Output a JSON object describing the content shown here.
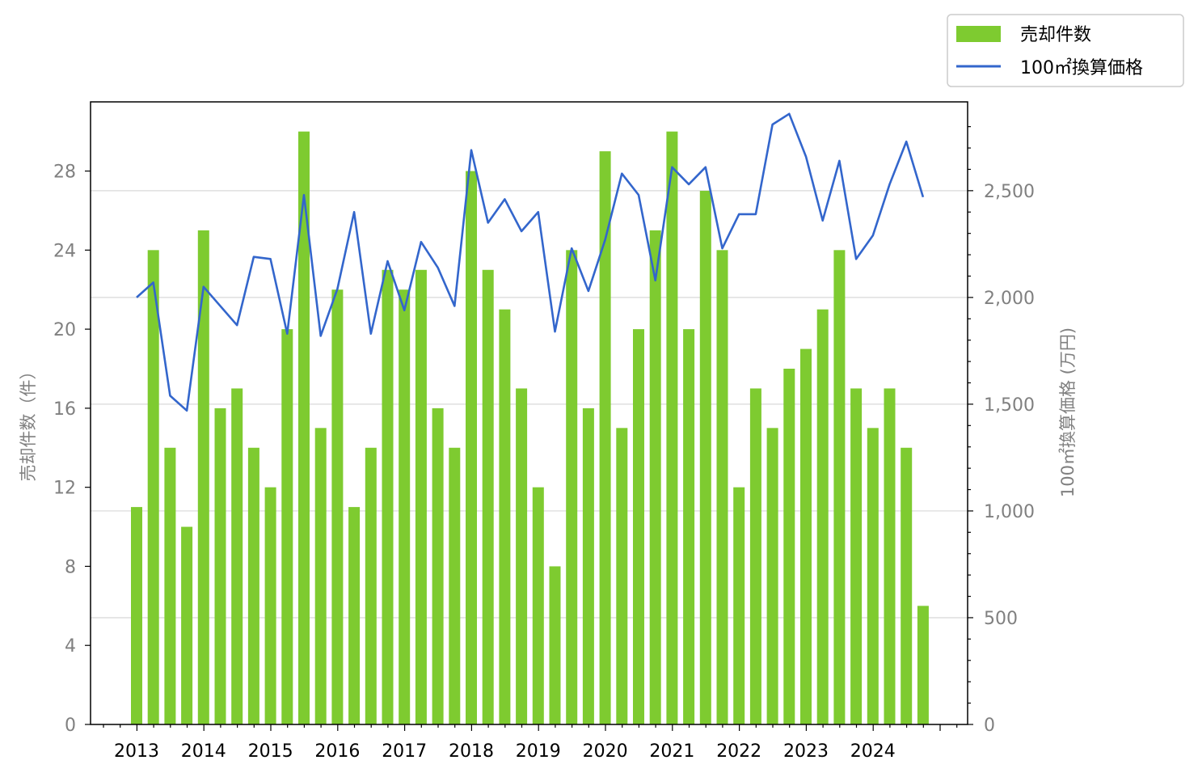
{
  "chart_data": {
    "type": "bar+line",
    "x_ticks": [
      "2013",
      "2014",
      "2015",
      "2016",
      "2017",
      "2018",
      "2019",
      "2020",
      "2021",
      "2022",
      "2023",
      "2024"
    ],
    "left_axis": {
      "label": "売却件数（件）",
      "ticks": [
        0,
        4,
        8,
        12,
        16,
        20,
        24,
        28
      ],
      "ylim": [
        0,
        31.5
      ]
    },
    "right_axis": {
      "label": "100㎡換算価格 (万円)",
      "ticks": [
        "0",
        "500",
        "1,000",
        "1,500",
        "2,000",
        "2,500"
      ],
      "tick_values": [
        0,
        500,
        1000,
        1500,
        2000,
        2500
      ],
      "ylim": [
        0,
        2916
      ]
    },
    "grid": "horizontal, right axis",
    "legend": {
      "position": "top-right",
      "bar_label": "売却件数",
      "line_label": "100㎡換算価格"
    },
    "colors": {
      "bar": "#7ecb30",
      "line": "#3366cc",
      "grid": "#d8d8d8"
    },
    "series": [
      {
        "name": "売却件数",
        "type": "bar",
        "values": [
          11,
          24,
          14,
          10,
          25,
          16,
          17,
          14,
          12,
          20,
          30,
          15,
          22,
          11,
          14,
          23,
          22,
          23,
          16,
          14,
          28,
          23,
          21,
          17,
          12,
          8,
          24,
          16,
          29,
          15,
          20,
          25,
          30,
          20,
          27,
          24,
          12,
          17,
          15,
          18,
          19,
          21,
          24,
          17,
          15,
          17,
          14,
          6
        ]
      },
      {
        "name": "100㎡換算価格",
        "type": "line",
        "values": [
          2000,
          2070,
          1540,
          1470,
          2050,
          1960,
          1870,
          2190,
          2180,
          1830,
          2480,
          1820,
          2040,
          2400,
          1830,
          2170,
          1940,
          2260,
          2140,
          1960,
          2690,
          2350,
          2460,
          2310,
          2400,
          1840,
          2230,
          2030,
          2270,
          2580,
          2480,
          2080,
          2610,
          2530,
          2610,
          2230,
          2390,
          2390,
          2810,
          2860,
          2660,
          2360,
          2640,
          2180,
          2290,
          2530,
          2730,
          2470
        ]
      }
    ]
  }
}
